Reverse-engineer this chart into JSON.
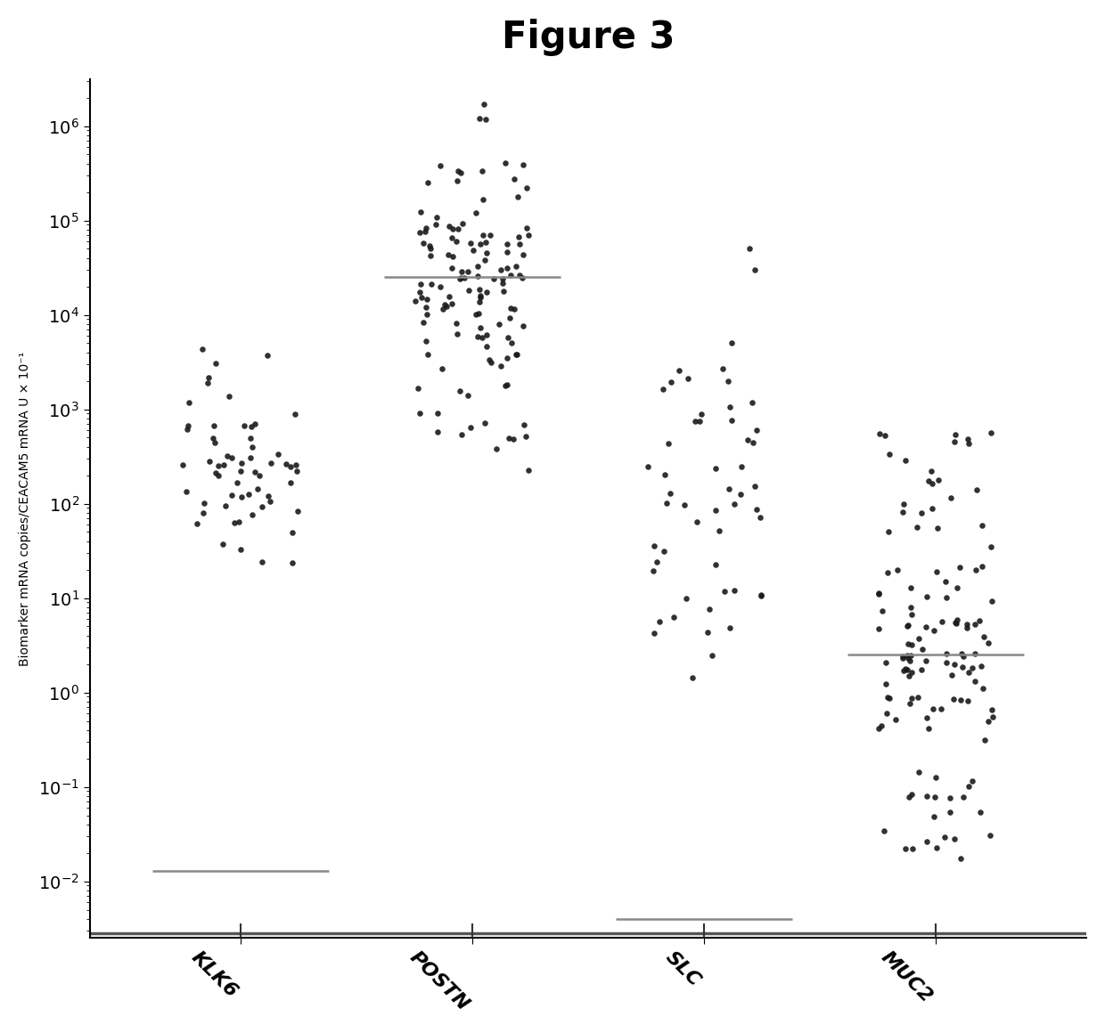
{
  "title": "Figure 3",
  "ylabel": "Biomarker mRNA copies/CEACAM5 mRNA U × 10⁻¹",
  "categories": [
    "KLK6",
    "POSTN",
    "SLC",
    "MUC2"
  ],
  "background_color": "#ffffff",
  "dot_color": "#1a1a1a",
  "median_line_color": "#888888",
  "detection_limit_color": "#888888",
  "postn_median": 25000,
  "klk6_detect": 0.013,
  "slc_detect": 0.004,
  "muc2_median": 2.5,
  "title_fontsize": 30,
  "ylabel_fontsize": 10,
  "tick_fontsize": 14,
  "xtick_fontsize": 16
}
